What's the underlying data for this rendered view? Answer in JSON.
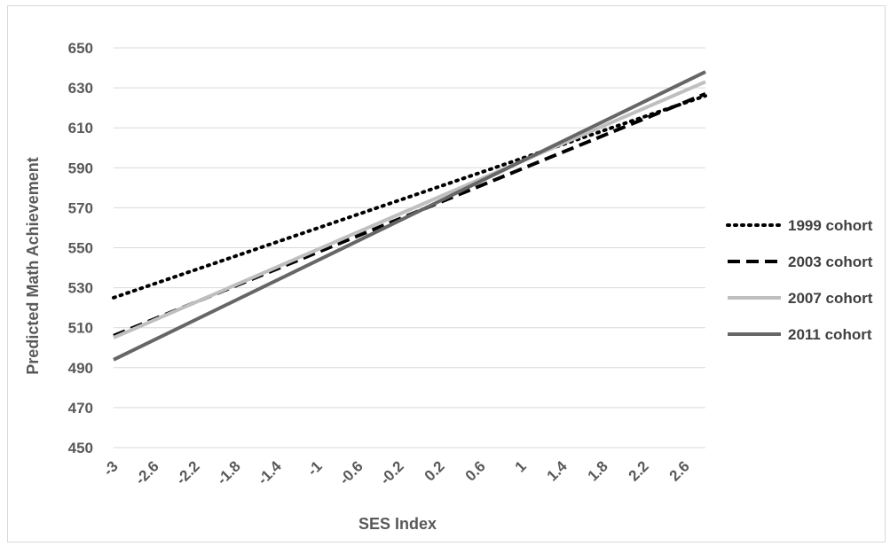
{
  "chart_data": {
    "type": "line",
    "title": "",
    "xlabel": "SES Index",
    "ylabel": "Predicted Math Achievement",
    "ylim": [
      450,
      650
    ],
    "yticks": [
      "450",
      "470",
      "490",
      "510",
      "530",
      "550",
      "570",
      "590",
      "610",
      "630",
      "650"
    ],
    "x_tick_labels": [
      "-3",
      "-2.6",
      "-2.2",
      "-1.8",
      "-1.4",
      "-1",
      "-0.6",
      "-0.2",
      "0.2",
      "0.6",
      "1",
      "1.4",
      "1.8",
      "2.2",
      "2.6"
    ],
    "x": [
      -3.0,
      2.8
    ],
    "grid": "horizontal",
    "legend_position": "right",
    "series": [
      {
        "name": "1999 cohort",
        "values": [
          525,
          626
        ],
        "color": "#000000",
        "style": "dotted"
      },
      {
        "name": "2003 cohort",
        "values": [
          506,
          627
        ],
        "color": "#000000",
        "style": "dashed"
      },
      {
        "name": "2007 cohort",
        "values": [
          505,
          633
        ],
        "color": "#bfbfbf",
        "style": "solid"
      },
      {
        "name": "2011 cohort",
        "values": [
          494,
          638
        ],
        "color": "#666666",
        "style": "solid"
      }
    ]
  }
}
